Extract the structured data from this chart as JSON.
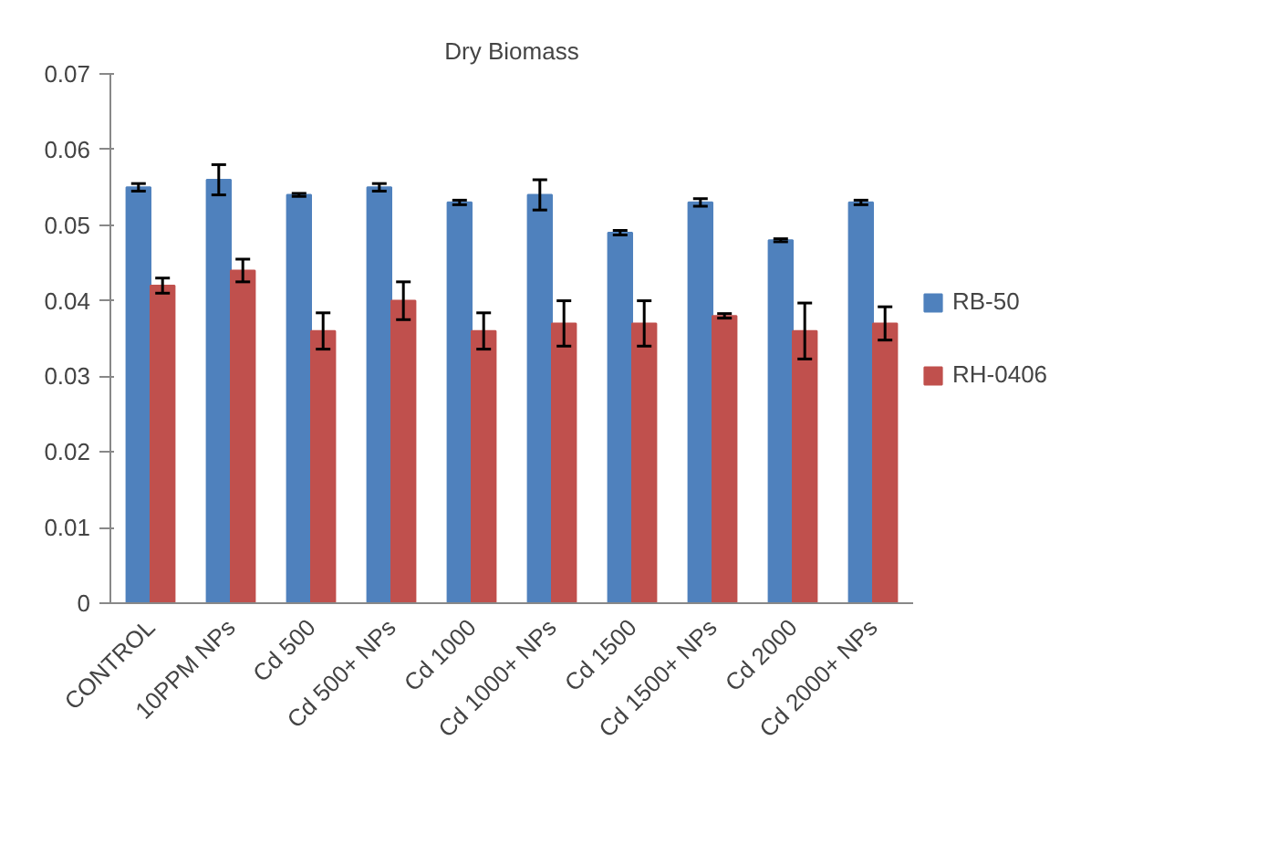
{
  "chart_data": {
    "type": "bar",
    "title": "Dry Biomass",
    "categories": [
      "CONTROL",
      "10PPM NPs",
      "Cd 500",
      "Cd 500+ NPs",
      "Cd 1000",
      "Cd 1000+ NPs",
      "Cd 1500",
      "Cd 1500+ NPs",
      "Cd 2000",
      "Cd 2000+ NPs"
    ],
    "series": [
      {
        "name": "RB-50",
        "color": "#4f81bd",
        "values": [
          0.055,
          0.056,
          0.054,
          0.055,
          0.053,
          0.054,
          0.049,
          0.053,
          0.048,
          0.053
        ],
        "errors": [
          0.0005,
          0.002,
          0.0002,
          0.0005,
          0.0003,
          0.002,
          0.0003,
          0.0005,
          0.0002,
          0.0003
        ]
      },
      {
        "name": "RH-0406",
        "color": "#c0504d",
        "values": [
          0.042,
          0.044,
          0.036,
          0.04,
          0.036,
          0.037,
          0.037,
          0.038,
          0.036,
          0.037
        ],
        "errors": [
          0.001,
          0.0015,
          0.0024,
          0.0025,
          0.0024,
          0.003,
          0.003,
          0.0003,
          0.0037,
          0.0022
        ]
      }
    ],
    "ylim": [
      0,
      0.07
    ],
    "yticks": [
      0,
      0.01,
      0.02,
      0.03,
      0.04,
      0.05,
      0.06,
      0.07
    ],
    "grid": false,
    "legend": "right"
  }
}
